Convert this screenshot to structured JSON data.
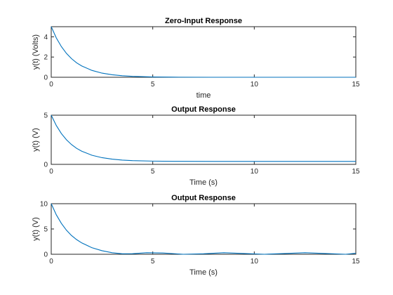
{
  "chart_data": [
    {
      "type": "line",
      "title": "Zero-Input Response",
      "xlabel": "time",
      "ylabel": "y(t) (Volts)",
      "xlim": [
        0,
        15
      ],
      "ylim": [
        0,
        5
      ],
      "xticks": [
        "0",
        "5",
        "10",
        "15"
      ],
      "yticks": [
        "0",
        "2",
        "4"
      ],
      "grid": false,
      "series": [
        {
          "color": "#0072BD",
          "x": [
            0,
            0.25,
            0.5,
            0.75,
            1,
            1.25,
            1.5,
            2,
            2.5,
            3,
            3.5,
            4,
            5,
            6,
            8,
            10,
            12,
            15
          ],
          "y": [
            5.0,
            3.89,
            3.03,
            2.36,
            1.84,
            1.43,
            1.12,
            0.68,
            0.41,
            0.25,
            0.15,
            0.09,
            0.03,
            0.01,
            0.0,
            0.0,
            0.0,
            0.0
          ]
        }
      ]
    },
    {
      "type": "line",
      "title": "Output Response",
      "xlabel": "Time (s)",
      "ylabel": "y(t) (V)",
      "xlim": [
        0,
        15
      ],
      "ylim": [
        0,
        5
      ],
      "xticks": [
        "0",
        "5",
        "10",
        "15"
      ],
      "yticks": [
        "0",
        "5"
      ],
      "grid": false,
      "series": [
        {
          "color": "#0072BD",
          "x": [
            0,
            0.25,
            0.5,
            0.75,
            1,
            1.25,
            1.5,
            2,
            2.5,
            3,
            3.5,
            4,
            5,
            6,
            8,
            10,
            12,
            15
          ],
          "y": [
            5.0,
            3.95,
            3.13,
            2.5,
            2.01,
            1.63,
            1.34,
            0.93,
            0.68,
            0.53,
            0.43,
            0.38,
            0.33,
            0.31,
            0.3,
            0.3,
            0.3,
            0.3
          ]
        }
      ]
    },
    {
      "type": "line",
      "title": "Output Response",
      "xlabel": "Time (s)",
      "ylabel": "y(t) (V)",
      "xlim": [
        0,
        15
      ],
      "ylim": [
        0,
        10
      ],
      "xticks": [
        "0",
        "5",
        "10",
        "15"
      ],
      "yticks": [
        "0",
        "5",
        "10"
      ],
      "grid": false,
      "series": [
        {
          "color": "#0072BD",
          "x": [
            0,
            0.25,
            0.5,
            0.75,
            1,
            1.25,
            1.5,
            2,
            2.5,
            3,
            3.5,
            4,
            4.7,
            5.5,
            6.5,
            7.5,
            8.5,
            9.5,
            10.5,
            11.5,
            12.5,
            13.5,
            14.5,
            15
          ],
          "y": [
            10.0,
            7.8,
            6.1,
            4.75,
            3.7,
            2.9,
            2.25,
            1.3,
            0.7,
            0.3,
            0.1,
            0.12,
            0.3,
            0.25,
            0.0,
            0.1,
            0.3,
            0.15,
            0.0,
            0.15,
            0.3,
            0.15,
            0.0,
            0.2
          ]
        }
      ]
    }
  ]
}
